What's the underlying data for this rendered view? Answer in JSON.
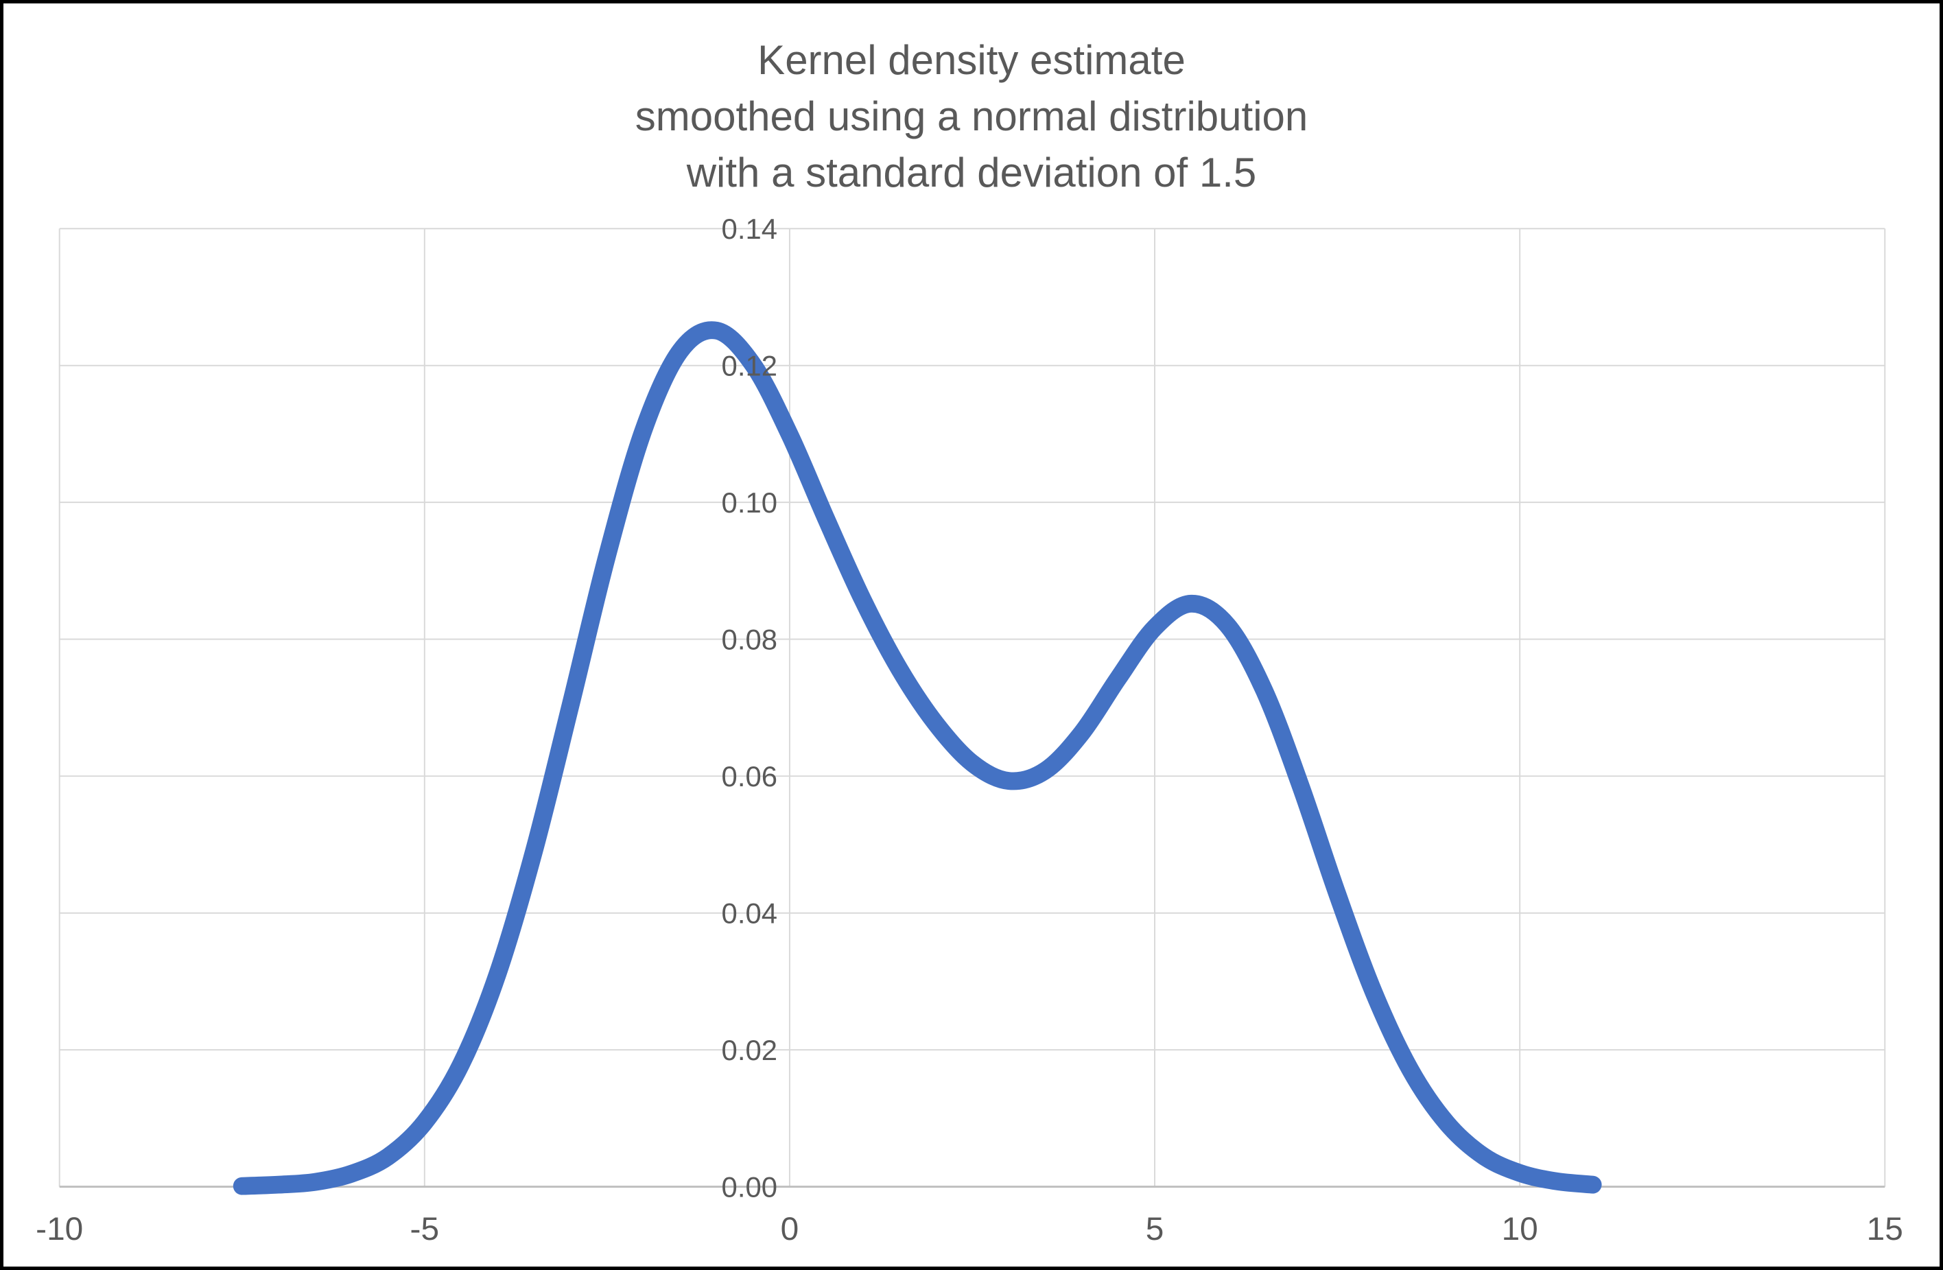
{
  "window": {
    "background_color": "#ffffff",
    "frame_color": "#000000"
  },
  "chart_data": {
    "type": "line",
    "title_lines": [
      "Kernel density estimate",
      "smoothed using a normal distribution",
      "with a standard deviation of 1.5"
    ],
    "title_color": "#595959",
    "xlabel": "",
    "ylabel": "",
    "xlim": [
      -10,
      15
    ],
    "ylim": [
      0,
      0.14
    ],
    "x_ticks": [
      -10,
      -5,
      0,
      5,
      10,
      15
    ],
    "x_tick_labels": [
      "-10",
      "-5",
      "0",
      "5",
      "10",
      "15"
    ],
    "y_ticks": [
      0,
      0.02,
      0.04,
      0.06,
      0.08,
      0.1,
      0.12,
      0.14
    ],
    "y_tick_labels": [
      "0.00",
      "0.02",
      "0.04",
      "0.06",
      "0.08",
      "0.10",
      "0.12",
      "0.14"
    ],
    "grid": true,
    "legend": "none",
    "gridline_color": "#d9d9d9",
    "axis_line_color": "#bfbfbf",
    "tick_label_color": "#595959",
    "series": [
      {
        "name": "kernel density estimate",
        "color": "#4472c4",
        "stroke_width": 26,
        "x": [
          -7.5,
          -7,
          -6.5,
          -6,
          -5.5,
          -5,
          -4.5,
          -4,
          -3.5,
          -3,
          -2.5,
          -2,
          -1.5,
          -1,
          -0.5,
          0,
          0.5,
          1,
          1.5,
          2,
          2.5,
          3,
          3.5,
          4,
          4.5,
          5,
          5.5,
          6,
          6.5,
          7,
          7.5,
          8,
          8.5,
          9,
          9.5,
          10,
          10.5,
          11
        ],
        "y": [
          0.0001,
          0.0003,
          0.0007,
          0.0019,
          0.0044,
          0.0094,
          0.0179,
          0.0311,
          0.0491,
          0.0704,
          0.0922,
          0.1106,
          0.1221,
          0.1251,
          0.1201,
          0.1099,
          0.0976,
          0.0858,
          0.0757,
          0.0677,
          0.0619,
          0.0593,
          0.0608,
          0.0663,
          0.0743,
          0.0817,
          0.0852,
          0.082,
          0.0725,
          0.0585,
          0.0428,
          0.0284,
          0.0171,
          0.0093,
          0.0045,
          0.002,
          0.0008,
          0.0003
        ]
      }
    ]
  }
}
